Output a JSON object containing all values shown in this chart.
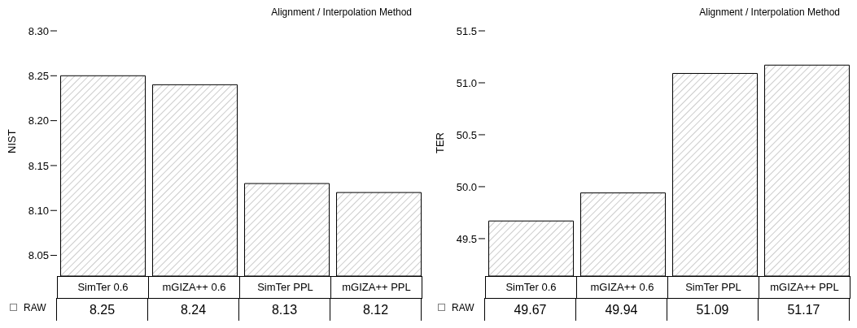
{
  "chart_data": [
    {
      "type": "bar",
      "title": "Alignment / Interpolation Method",
      "ylabel": "NIST",
      "categories": [
        "SimTer 0.6",
        "mGIZA++ 0.6",
        "SimTer PPL",
        "mGIZA++ PPL"
      ],
      "series": [
        {
          "name": "RAW",
          "color": "#000000",
          "values": [
            8.25,
            8.24,
            8.13,
            8.12
          ]
        }
      ],
      "ylim": [
        8.027,
        8.3
      ],
      "yticks": [
        {
          "value": 8.05,
          "label": "8.05"
        },
        {
          "value": 8.1,
          "label": "8.10"
        },
        {
          "value": 8.15,
          "label": "8.15"
        },
        {
          "value": 8.2,
          "label": "8.20"
        },
        {
          "value": 8.25,
          "label": "8.25"
        },
        {
          "value": 8.3,
          "label": "8.30"
        }
      ],
      "data_labels": true,
      "legend": "bottom left",
      "grid": false
    },
    {
      "type": "bar",
      "title": "Alignment / Interpolation Method",
      "ylabel": "TER",
      "categories": [
        "SimTer 0.6",
        "mGIZA++ 0.6",
        "SimTer PPL",
        "mGIZA++ PPL"
      ],
      "series": [
        {
          "name": "RAW",
          "color": "#000000",
          "values": [
            49.67,
            49.94,
            51.09,
            51.17
          ]
        }
      ],
      "ylim": [
        49.14,
        51.5
      ],
      "yticks": [
        {
          "value": 49.5,
          "label": "49.5"
        },
        {
          "value": 50,
          "label": "50.0"
        },
        {
          "value": 50.5,
          "label": "50.5"
        },
        {
          "value": 51,
          "label": "51.0"
        },
        {
          "value": 51.5,
          "label": "51.5"
        }
      ],
      "data_labels": true,
      "legend": "bottom left",
      "grid": false
    }
  ]
}
